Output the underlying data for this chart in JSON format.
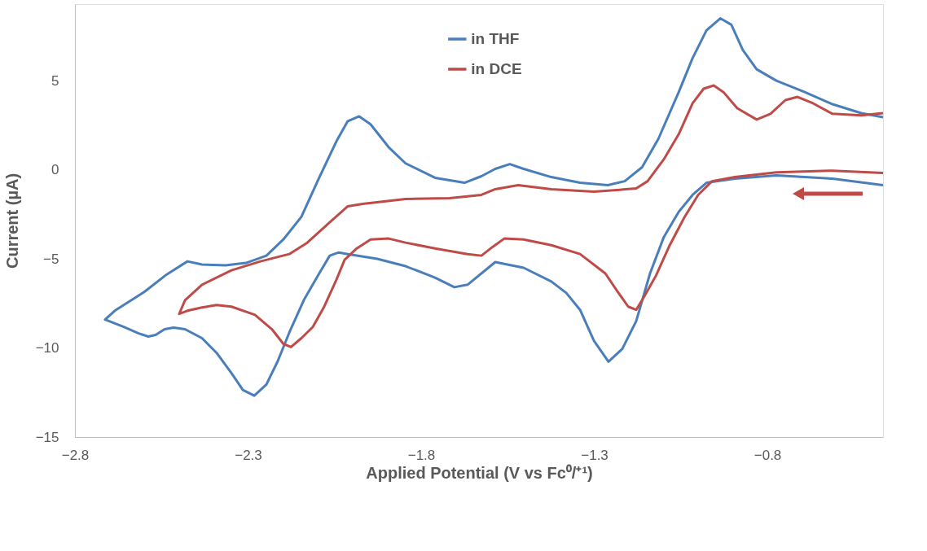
{
  "chart_data": {
    "type": "line",
    "xlabel": "Applied Potential (V vs Fc⁰/⁺¹)",
    "ylabel": "Current (µA)",
    "xlim": [
      -2.8,
      -0.466
    ],
    "xticks": [
      -2.8,
      -2.3,
      -1.8,
      -1.3,
      -0.8
    ],
    "ylim": [
      -15,
      9.3
    ],
    "yticks": [
      -15,
      -10,
      -5,
      0,
      5
    ],
    "grid": false,
    "legend": "top",
    "line_style": "solid",
    "marker": "none",
    "series": [
      {
        "name": "in THF",
        "color": "#4a7ebb",
        "x": [
          -0.466,
          -0.612,
          -0.774,
          -0.894,
          -0.976,
          -1.016,
          -1.056,
          -1.099,
          -1.139,
          -1.179,
          -1.219,
          -1.259,
          -1.301,
          -1.341,
          -1.381,
          -1.424,
          -1.504,
          -1.586,
          -1.666,
          -1.704,
          -1.76,
          -1.845,
          -1.927,
          -2.012,
          -2.038,
          -2.064,
          -2.096,
          -2.139,
          -2.181,
          -2.214,
          -2.247,
          -2.282,
          -2.315,
          -2.348,
          -2.391,
          -2.433,
          -2.482,
          -2.515,
          -2.541,
          -2.567,
          -2.588,
          -2.616,
          -2.659,
          -2.713,
          -2.685,
          -2.6,
          -2.534,
          -2.475,
          -2.433,
          -2.365,
          -2.306,
          -2.247,
          -2.198,
          -2.146,
          -2.096,
          -2.045,
          -2.012,
          -1.979,
          -1.946,
          -1.894,
          -1.845,
          -1.76,
          -1.675,
          -1.626,
          -1.586,
          -1.544,
          -1.504,
          -1.424,
          -1.341,
          -1.261,
          -1.212,
          -1.162,
          -1.115,
          -1.056,
          -1.016,
          -0.976,
          -0.936,
          -0.904,
          -0.871,
          -0.831,
          -0.774,
          -0.692,
          -0.612,
          -0.529,
          -0.466
        ],
        "values": [
          -0.86,
          -0.5,
          -0.32,
          -0.5,
          -0.73,
          -1.41,
          -2.36,
          -3.77,
          -5.82,
          -8.5,
          -10.05,
          -10.77,
          -9.59,
          -7.86,
          -6.91,
          -6.27,
          -5.5,
          -5.18,
          -6.45,
          -6.59,
          -6.05,
          -5.41,
          -5.0,
          -4.73,
          -4.64,
          -4.82,
          -5.86,
          -7.32,
          -9.14,
          -10.73,
          -12.05,
          -12.68,
          -12.36,
          -11.41,
          -10.27,
          -9.45,
          -8.95,
          -8.86,
          -8.95,
          -9.27,
          -9.36,
          -9.18,
          -8.82,
          -8.41,
          -7.91,
          -6.86,
          -5.86,
          -5.14,
          -5.32,
          -5.36,
          -5.23,
          -4.82,
          -3.91,
          -2.64,
          -0.5,
          1.59,
          2.73,
          3.0,
          2.55,
          1.27,
          0.36,
          -0.45,
          -0.73,
          -0.36,
          0.05,
          0.32,
          0.05,
          -0.41,
          -0.73,
          -0.86,
          -0.64,
          0.14,
          1.73,
          4.36,
          6.27,
          7.82,
          8.5,
          8.14,
          6.73,
          5.64,
          5.0,
          4.36,
          3.68,
          3.18,
          2.95
        ]
      },
      {
        "name": "in DCE",
        "color": "#be4b48",
        "x": [
          -0.466,
          -0.612,
          -0.774,
          -0.894,
          -0.96,
          -1.0,
          -1.04,
          -1.082,
          -1.122,
          -1.155,
          -1.179,
          -1.202,
          -1.235,
          -1.268,
          -1.341,
          -1.424,
          -1.504,
          -1.56,
          -1.593,
          -1.626,
          -1.666,
          -1.76,
          -1.845,
          -1.894,
          -1.946,
          -1.986,
          -2.021,
          -2.045,
          -2.08,
          -2.113,
          -2.146,
          -2.176,
          -2.198,
          -2.231,
          -2.28,
          -2.348,
          -2.391,
          -2.433,
          -2.475,
          -2.499,
          -2.482,
          -2.433,
          -2.348,
          -2.264,
          -2.181,
          -2.129,
          -2.064,
          -2.012,
          -1.969,
          -1.845,
          -1.718,
          -1.626,
          -1.586,
          -1.52,
          -1.424,
          -1.301,
          -1.179,
          -1.146,
          -1.099,
          -1.056,
          -1.016,
          -0.984,
          -0.955,
          -0.927,
          -0.887,
          -0.831,
          -0.791,
          -0.748,
          -0.713,
          -0.668,
          -0.612,
          -0.529,
          -0.466
        ],
        "values": [
          -0.18,
          -0.05,
          -0.14,
          -0.41,
          -0.64,
          -1.41,
          -2.68,
          -4.23,
          -5.95,
          -7.09,
          -7.86,
          -7.68,
          -6.77,
          -5.82,
          -4.73,
          -4.23,
          -3.91,
          -3.86,
          -4.32,
          -4.82,
          -4.73,
          -4.41,
          -4.09,
          -3.86,
          -3.91,
          -4.41,
          -5.05,
          -6.18,
          -7.68,
          -8.82,
          -9.45,
          -9.95,
          -9.77,
          -8.95,
          -8.14,
          -7.68,
          -7.59,
          -7.73,
          -7.91,
          -8.09,
          -7.32,
          -6.45,
          -5.64,
          -5.14,
          -4.73,
          -4.09,
          -2.95,
          -2.05,
          -1.91,
          -1.64,
          -1.59,
          -1.41,
          -1.09,
          -0.86,
          -1.09,
          -1.23,
          -1.05,
          -0.64,
          0.59,
          2.0,
          3.73,
          4.55,
          4.73,
          4.36,
          3.45,
          2.82,
          3.14,
          3.91,
          4.09,
          3.73,
          3.14,
          3.05,
          3.18
        ]
      }
    ]
  }
}
